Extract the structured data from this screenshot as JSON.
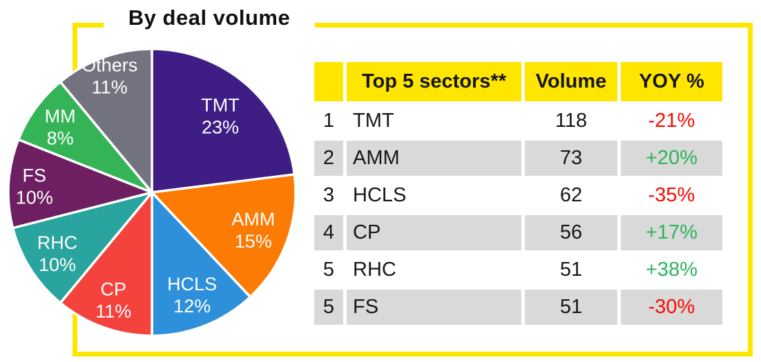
{
  "title": "By deal volume",
  "colors": {
    "frame": "#ffe600",
    "header_bg": "#ffe600",
    "row_alt_bg": "#d9d9d9",
    "negative_text": "#fa0a00",
    "positive_text": "#2db25c",
    "pie_label_text": "#ffffff"
  },
  "chart_data": {
    "type": "pie",
    "title": "By deal volume",
    "start_angle": "top",
    "direction": "clockwise",
    "value_format": "percent",
    "series": [
      {
        "label": "TMT",
        "value": 23,
        "color": "#3e1d84"
      },
      {
        "label": "AMM",
        "value": 15,
        "color": "#fb7b05"
      },
      {
        "label": "HCLS",
        "value": 12,
        "color": "#2e90da"
      },
      {
        "label": "CP",
        "value": 11,
        "color": "#f4423c"
      },
      {
        "label": "RHC",
        "value": 10,
        "color": "#2aa49e"
      },
      {
        "label": "FS",
        "value": 10,
        "color": "#6d1f61"
      },
      {
        "label": "MM",
        "value": 8,
        "color": "#35b457"
      },
      {
        "label": "Others",
        "value": 11,
        "color": "#72737e"
      }
    ]
  },
  "table": {
    "headers": [
      "",
      "Top 5 sectors**",
      "Volume",
      "YOY %"
    ],
    "rows": [
      {
        "rank": "1",
        "sector": "TMT",
        "volume": "118",
        "yoy": "-21%"
      },
      {
        "rank": "2",
        "sector": "AMM",
        "volume": "73",
        "yoy": "+20%"
      },
      {
        "rank": "3",
        "sector": "HCLS",
        "volume": "62",
        "yoy": "-35%"
      },
      {
        "rank": "4",
        "sector": "CP",
        "volume": "56",
        "yoy": "+17%"
      },
      {
        "rank": "5",
        "sector": "RHC",
        "volume": "51",
        "yoy": "+38%"
      },
      {
        "rank": "5",
        "sector": "FS",
        "volume": "51",
        "yoy": "-30%"
      }
    ]
  }
}
